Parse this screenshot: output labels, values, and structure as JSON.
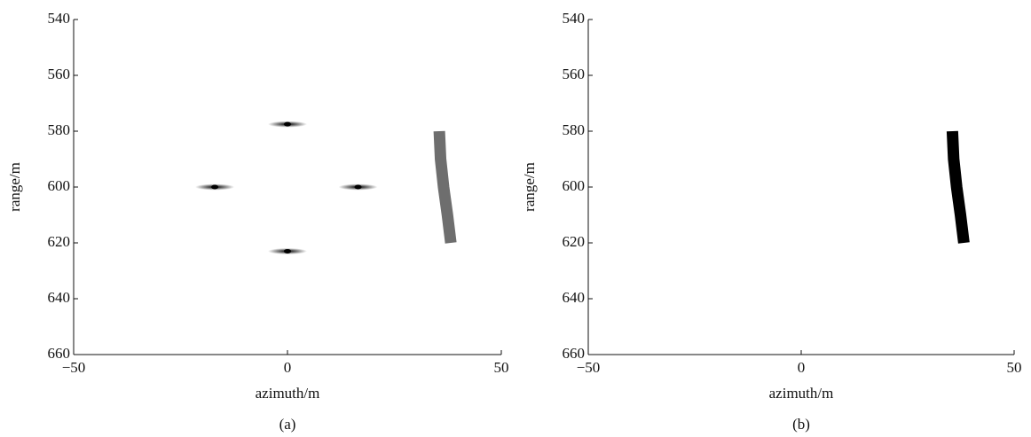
{
  "chart_data": [
    {
      "type": "scatter",
      "caption": "(a)",
      "xlabel": "azimuth/m",
      "ylabel": "range/m",
      "xlim": [
        -50,
        50
      ],
      "xticks": [
        {
          "value": -50,
          "label": "−50"
        },
        0,
        50
      ],
      "ylim": [
        540,
        660
      ],
      "yticks": [
        540,
        560,
        580,
        600,
        620,
        640,
        660
      ],
      "yreverse": true,
      "series": [
        {
          "type": "scatter",
          "color": "#000000",
          "x": [
            0,
            -17,
            16.5,
            0
          ],
          "y": [
            577.5,
            600,
            600,
            623
          ]
        },
        {
          "type": "line",
          "color": "#6e6e6e",
          "x": [
            35.5,
            35.8,
            36.5,
            37.4,
            38.2
          ],
          "y": [
            580,
            590,
            600,
            610,
            620
          ]
        }
      ]
    },
    {
      "type": "scatter",
      "caption": "(b)",
      "xlabel": "azimuth/m",
      "ylabel": "range/m",
      "xlim": [
        -50,
        50
      ],
      "xticks": [
        {
          "value": -50,
          "label": "−50"
        },
        0,
        50
      ],
      "ylim": [
        540,
        660
      ],
      "yticks": [
        540,
        560,
        580,
        600,
        620,
        640,
        660
      ],
      "yreverse": true,
      "series": [
        {
          "type": "line",
          "color": "#000000",
          "x": [
            35.5,
            35.8,
            36.5,
            37.4,
            38.2
          ],
          "y": [
            580,
            590,
            600,
            610,
            620
          ]
        }
      ]
    }
  ]
}
